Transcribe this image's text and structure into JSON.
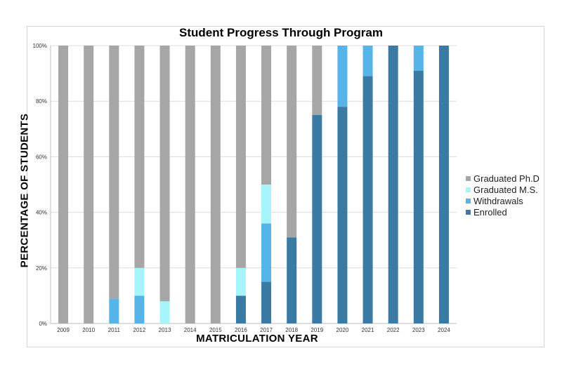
{
  "chart_data": {
    "type": "bar",
    "stacked": true,
    "title": "Student Progress Through Program",
    "xlabel": "MATRICULATION YEAR",
    "ylabel": "PERCENTAGE OF STUDENTS",
    "ylim": [
      0,
      100
    ],
    "yticks": [
      "0%",
      "20%",
      "40%",
      "60%",
      "80%",
      "100%"
    ],
    "grid": true,
    "legend_position": "right",
    "categories": [
      "2009",
      "2010",
      "2011",
      "2012",
      "2013",
      "2014",
      "2015",
      "2016",
      "2017",
      "2018",
      "2019",
      "2020",
      "2021",
      "2022",
      "2023",
      "2024"
    ],
    "series": [
      {
        "name": "Enrolled",
        "color": "#3a7aa3",
        "values": [
          0,
          0,
          0,
          0,
          0,
          0,
          0,
          10,
          15,
          31,
          75,
          78,
          89,
          100,
          91,
          100
        ]
      },
      {
        "name": "Withdrawals",
        "color": "#56b4e9",
        "values": [
          0,
          0,
          9,
          10,
          0,
          0,
          0,
          0,
          21,
          0,
          0,
          22,
          11,
          0,
          9,
          0
        ]
      },
      {
        "name": "Graduated M.S.",
        "color": "#a6f5fb",
        "values": [
          0,
          0,
          0,
          10,
          8,
          0,
          0,
          10,
          14,
          0,
          0,
          0,
          0,
          0,
          0,
          0
        ]
      },
      {
        "name": "Graduated Ph.D",
        "color": "#a6a6a6",
        "values": [
          100,
          100,
          91,
          80,
          92,
          100,
          100,
          80,
          50,
          69,
          25,
          0,
          0,
          0,
          0,
          0
        ]
      }
    ],
    "legend_order": [
      "Graduated Ph.D",
      "Graduated M.S.",
      "Withdrawals",
      "Enrolled"
    ]
  }
}
